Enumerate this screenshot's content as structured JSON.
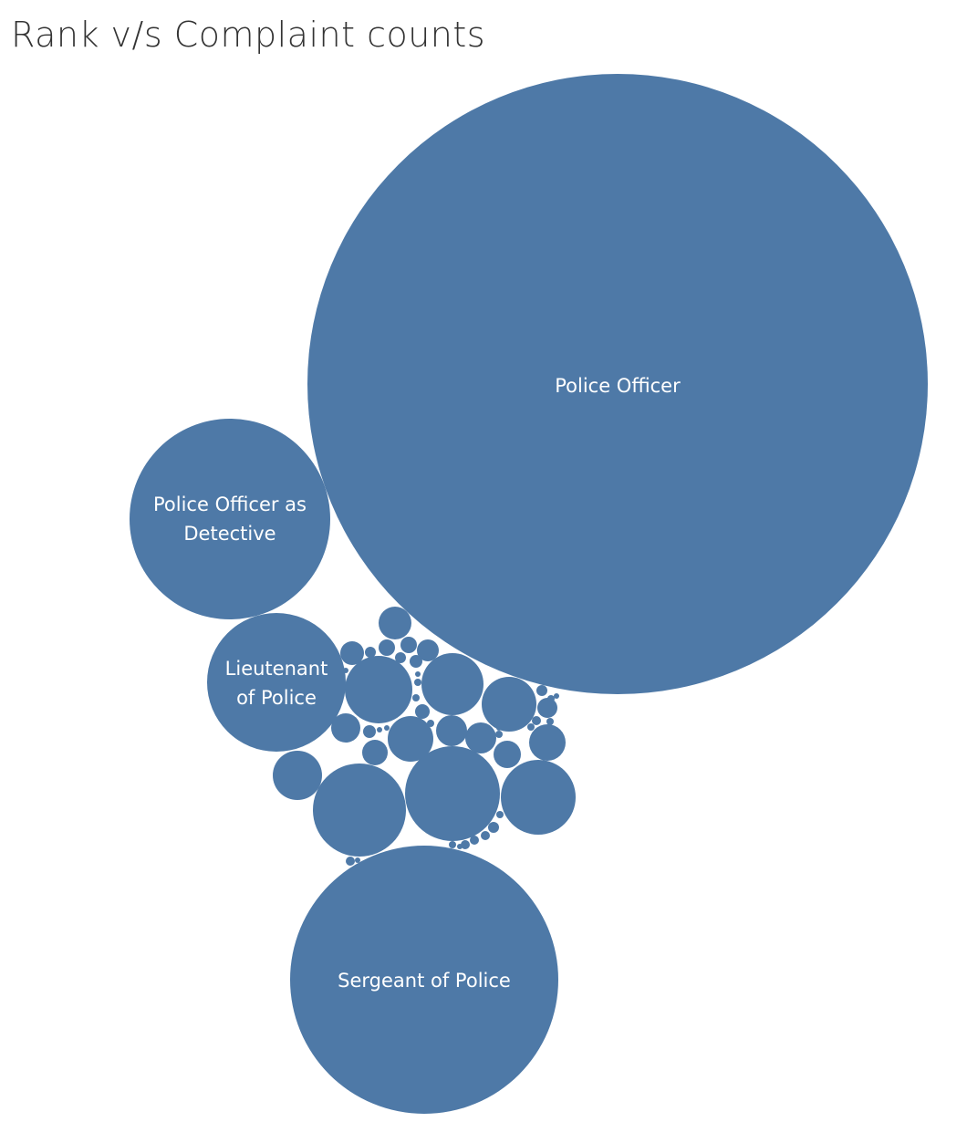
{
  "chart_data": {
    "type": "bubble",
    "title": "Rank v/s Complaint counts",
    "color": "#4e79a7",
    "label_color": "#ffffff",
    "labeled": [
      {
        "name": "Police Officer",
        "lines": [
          "Police Officer"
        ]
      },
      {
        "name": "Police Officer as Detective",
        "lines": [
          "Police Officer as",
          "Detective"
        ]
      },
      {
        "name": "Lieutenant of Police",
        "lines": [
          "Lieutenant",
          "of Police"
        ]
      },
      {
        "name": "Sergeant of Police",
        "lines": [
          "Sergeant of Police"
        ]
      }
    ],
    "unlabeled_bubble_count": 49
  }
}
